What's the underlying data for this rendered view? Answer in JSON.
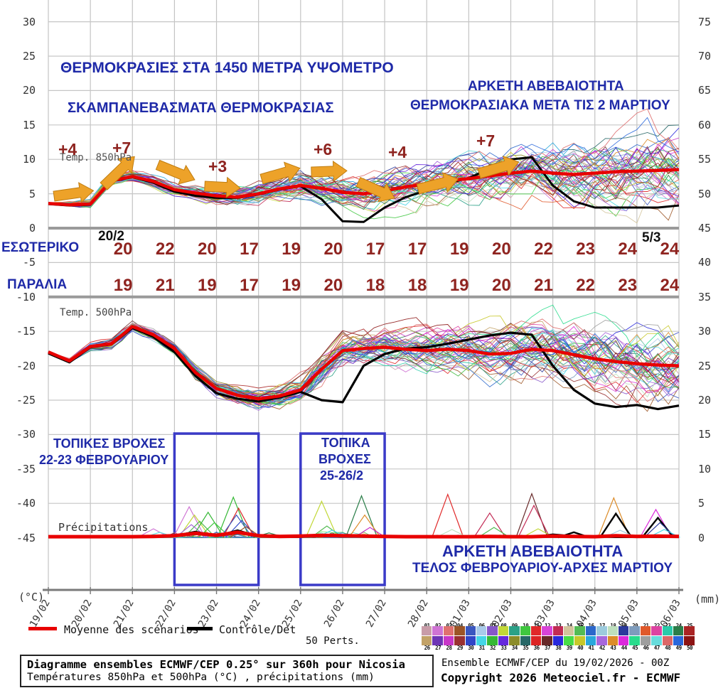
{
  "titles": {
    "main": "ΘΕΡΜΟΚΡΑΣΙΕΣ ΣΤΑ 1450 ΜΕΤΡΑ ΥΨΟΜΕΤΡΟ",
    "sub": "ΣΚΑΜΠΑΝΕΒΑΣΜΑΤΑ ΘΕΡΜΟΚΡΑΣΙΑΣ",
    "unc_top_1": "ΑΡΚΕΤΗ ΑΒΕΒΑΙΟΤΗΤΑ",
    "unc_top_2": "ΘΕΡΜΟΚΡΑΣΙΑΚΑ ΜΕΤΑ ΤΙΣ 2 ΜΑΡΤΙΟΥ",
    "unc_bottom_1": "ΑΡΚΕΤΗ ΑΒΕΒΑΙΟΤΗΤΑ",
    "unc_bottom_2": "ΤΕΛΟΣ ΦΕΒΡΟΥΑΡΙΟΥ-ΑΡΧΕΣ ΜΑΡΤΙΟΥ"
  },
  "panel_labels": {
    "t850": "Temp. 850hPa",
    "t500": "Temp. 500hPa",
    "precip": "Précipitations"
  },
  "axis": {
    "left_unit": "(°C)",
    "right_unit": "(mm)",
    "left_ticks": [
      "30",
      "25",
      "20",
      "15",
      "10",
      "5",
      "0",
      "-5",
      "-10",
      "-15",
      "-20",
      "-25",
      "-30",
      "-35",
      "-40",
      "-45"
    ],
    "right_ticks": [
      "75",
      "70",
      "65",
      "60",
      "55",
      "50",
      "45",
      "40",
      "35",
      "30",
      "25",
      "20",
      "15",
      "10",
      "5",
      "0"
    ],
    "dates": [
      "19/02",
      "20/02",
      "21/02",
      "22/02",
      "23/02",
      "24/02",
      "25/02",
      "26/02",
      "27/02",
      "28/02",
      "01/03",
      "02/03",
      "03/03",
      "04/03",
      "05/03",
      "06/03"
    ]
  },
  "rows": {
    "start_label": "20/2",
    "end_label": "5/3",
    "esoteriko": {
      "label": "ΕΣΩΤΕΡΙΚΟ",
      "values": [
        "20",
        "22",
        "20",
        "17",
        "19",
        "20",
        "17",
        "17",
        "19",
        "20",
        "22",
        "23",
        "24",
        "24"
      ]
    },
    "paralia": {
      "label": "ΠΑΡΑΛΙΑ",
      "values": [
        "19",
        "21",
        "19",
        "17",
        "19",
        "20",
        "18",
        "18",
        "19",
        "20",
        "21",
        "22",
        "23",
        "24"
      ]
    }
  },
  "rain_notes": {
    "box1_line1": "ΤΟΠΙΚΕΣ ΒΡΟΧΕΣ",
    "box1_line2": "22-23 ΦΕΒΡΟΥΑΡΙΟΥ",
    "box2_line1": "ΤΟΠΙΚΑ",
    "box2_line2": "ΒΡΟΧΕΣ",
    "box2_line3": "25-26/2"
  },
  "annotations": {
    "deltas": [
      "+4",
      "+7",
      "+3",
      "+6",
      "+4",
      "+7"
    ]
  },
  "legend": {
    "mean_label": "Moyenne des scénarios",
    "control_label": "Contrôle/Det",
    "perts_label": "50 Perts.",
    "mean_color": "#e80000",
    "control_color": "#000000"
  },
  "perts": {
    "numbers_top": [
      "01",
      "02",
      "03",
      "04",
      "05",
      "06",
      "07",
      "08",
      "09",
      "10",
      "11",
      "12",
      "13",
      "14",
      "15",
      "16",
      "17",
      "18",
      "19",
      "20",
      "21",
      "22",
      "23",
      "24",
      "25"
    ],
    "numbers_bottom": [
      "26",
      "27",
      "28",
      "29",
      "30",
      "31",
      "32",
      "33",
      "34",
      "35",
      "36",
      "37",
      "38",
      "39",
      "40",
      "41",
      "42",
      "43",
      "44",
      "45",
      "46",
      "47",
      "48",
      "49",
      "50"
    ],
    "colors": [
      "#c89ca8",
      "#cf74d4",
      "#e0716f",
      "#9c5526",
      "#3a57c0",
      "#a9cbea",
      "#8757c9",
      "#c2d837",
      "#2ba187",
      "#3fc73f",
      "#e02929",
      "#d843d8",
      "#c22b55",
      "#d3c49c",
      "#54bb54",
      "#2b67cb",
      "#9ccbdd",
      "#bddfbd",
      "#2b3a9c",
      "#7e9cbd",
      "#e0592b",
      "#dd43a1",
      "#29cbaa",
      "#2b7e49",
      "#aa2424",
      "#c2a267",
      "#6d35b5",
      "#c837c8",
      "#993131",
      "#3046c8",
      "#45d6e6",
      "#36b836",
      "#6629dd",
      "#8c8c29",
      "#276767",
      "#dc2424",
      "#672929",
      "#2929dc",
      "#47dc47",
      "#c8c829",
      "#29a7dc",
      "#a767dc",
      "#dc8c29",
      "#dc29dc",
      "#29dc8c",
      "#9e9e9e",
      "#67dcdc",
      "#dc6767",
      "#2967dc",
      "#8c1414"
    ]
  },
  "footer": {
    "box_line1": "Diagramme ensembles ECMWF/CEP 0.25° sur 360h pour Nicosia",
    "box_line2": "Températures 850hPa et 500hPa (°C) , précipitations (mm)",
    "right_line1": "Ensemble ECMWF/CEP du 19/02/2026 - 00Z",
    "right_line2": "Copyright 2026 Meteociel.fr - ECMWF"
  },
  "chart_data": [
    {
      "type": "line",
      "name": "Temp. 850hPa",
      "unit": "°C",
      "x_start": "19/02 00Z",
      "x_end": "06/03 00Z",
      "time_step_hours": 12,
      "ensemble_members": 50,
      "ylim_view": [
        -52,
        31
      ],
      "series": [
        {
          "name": "Moyenne des scénarios",
          "color": "#e80000",
          "values": [
            3.6,
            3.4,
            3.5,
            6.9,
            7.5,
            6.8,
            5.6,
            5.1,
            4.7,
            4.5,
            5.0,
            5.7,
            6.2,
            5.8,
            5.2,
            5.0,
            5.4,
            6.0,
            6.4,
            6.9,
            7.2,
            7.6,
            8.0,
            8.3,
            8.0,
            7.8,
            8.0,
            8.2,
            8.3,
            8.4,
            8.5
          ]
        },
        {
          "name": "Contrôle/Det",
          "color": "#000000",
          "values": [
            3.5,
            3.3,
            3.4,
            6.8,
            7.4,
            6.6,
            5.3,
            4.7,
            4.4,
            4.4,
            4.9,
            5.6,
            6.1,
            4.2,
            1.0,
            0.9,
            3.0,
            4.5,
            5.5,
            6.5,
            7.3,
            8.6,
            10.0,
            10.3,
            6.2,
            3.9,
            3.0,
            3.0,
            3.0,
            3.0,
            3.3
          ]
        }
      ]
    },
    {
      "type": "line",
      "name": "Temp. 500hPa",
      "unit": "°C",
      "x_start": "19/02 00Z",
      "x_end": "06/03 00Z",
      "time_step_hours": 12,
      "ensemble_members": 50,
      "series": [
        {
          "name": "Moyenne des scénarios",
          "color": "#e80000",
          "values": [
            -18.0,
            -19.3,
            -17.2,
            -16.8,
            -14.3,
            -15.5,
            -17.5,
            -21.0,
            -23.3,
            -24.3,
            -24.8,
            -24.4,
            -23.5,
            -20.5,
            -17.8,
            -17.5,
            -17.3,
            -17.6,
            -17.8,
            -17.6,
            -17.8,
            -18.3,
            -18.2,
            -17.6,
            -17.8,
            -18.4,
            -19.0,
            -19.4,
            -19.7,
            -19.9,
            -20.0
          ]
        },
        {
          "name": "Contrôle/Det",
          "color": "#000000",
          "values": [
            -18.2,
            -19.5,
            -17.3,
            -16.9,
            -14.5,
            -15.8,
            -18.0,
            -21.5,
            -24.0,
            -24.8,
            -25.2,
            -24.6,
            -23.8,
            -25.0,
            -25.3,
            -20.0,
            -18.3,
            -17.5,
            -17.3,
            -16.8,
            -16.2,
            -15.6,
            -15.2,
            -15.5,
            -20.0,
            -23.5,
            -25.5,
            -26.0,
            -25.7,
            -26.3,
            -25.8
          ]
        }
      ]
    },
    {
      "type": "line",
      "name": "Précipitations",
      "unit": "mm",
      "x_start": "19/02 00Z",
      "x_end": "06/03 00Z",
      "time_step_hours": 12,
      "series": [
        {
          "name": "Moyenne des scénarios",
          "color": "#e80000",
          "values": [
            0.15,
            0.15,
            0.15,
            0.15,
            0.15,
            0.2,
            0.3,
            0.65,
            0.35,
            0.8,
            0.3,
            0.2,
            0.25,
            0.35,
            0.3,
            0.25,
            0.2,
            0.15,
            0.15,
            0.15,
            0.15,
            0.2,
            0.15,
            0.15,
            0.25,
            0.2,
            0.15,
            0.3,
            0.2,
            0.25,
            0.2
          ]
        },
        {
          "name": "Contrôle/Det",
          "color": "#000000",
          "values": [
            0.08,
            0.08,
            0.08,
            0.08,
            0.08,
            0.15,
            0.3,
            0.9,
            0.25,
            1.1,
            0.2,
            0.08,
            0.1,
            0.25,
            0.15,
            0.2,
            0.1,
            0.08,
            0.08,
            0.1,
            0.08,
            0.15,
            0.1,
            0.08,
            0.5,
            0.25,
            0.15,
            0.08,
            0.08,
            0.08,
            0.08
          ]
        }
      ],
      "member_spikes_6h": [
        {
          "t": 10,
          "h": 1.3,
          "c": 1
        },
        {
          "t": 10.6,
          "h": 0.8,
          "c": 46
        },
        {
          "t": 13.4,
          "h": 4.5,
          "c": 1
        },
        {
          "t": 13.9,
          "h": 3.3,
          "c": 7
        },
        {
          "t": 14.4,
          "h": 2.4,
          "c": 14
        },
        {
          "t": 13.6,
          "h": 1.9,
          "c": 41
        },
        {
          "t": 15.2,
          "h": 3.7,
          "c": 31
        },
        {
          "t": 15.8,
          "h": 2.2,
          "c": 9
        },
        {
          "t": 17.6,
          "h": 5.9,
          "c": 31
        },
        {
          "t": 18.1,
          "h": 4.3,
          "c": 35
        },
        {
          "t": 17.9,
          "h": 3.3,
          "c": 4
        },
        {
          "t": 18.4,
          "h": 2.5,
          "c": 29
        },
        {
          "t": 18.8,
          "h": 1.6,
          "c": 3
        },
        {
          "t": 21,
          "h": 0.7,
          "c": 23
        },
        {
          "t": 26,
          "h": 5.3,
          "c": 7
        },
        {
          "t": 26.5,
          "h": 1.7,
          "c": 14
        },
        {
          "t": 27,
          "h": 1.1,
          "c": 30
        },
        {
          "t": 29.8,
          "h": 6.1,
          "c": 23
        },
        {
          "t": 30.1,
          "h": 3.3,
          "c": 42
        },
        {
          "t": 30.6,
          "h": 1.5,
          "c": 27
        },
        {
          "t": 38,
          "h": 6.3,
          "c": 10
        },
        {
          "t": 38.4,
          "h": 1.2,
          "c": 17
        },
        {
          "t": 42,
          "h": 3.6,
          "c": 12
        },
        {
          "t": 42.4,
          "h": 1.5,
          "c": 14
        },
        {
          "t": 46,
          "h": 6.4,
          "c": 36
        },
        {
          "t": 46.2,
          "h": 4.7,
          "c": 12
        },
        {
          "t": 46.6,
          "h": 1.3,
          "c": 7
        },
        {
          "t": 50,
          "h": 0.8,
          "c": null
        },
        {
          "t": 53.8,
          "h": 5.8,
          "c": 42
        },
        {
          "t": 54,
          "h": 3.5,
          "c": null
        },
        {
          "t": 54.4,
          "h": 1.1,
          "c": 16
        },
        {
          "t": 57.8,
          "h": 4.1,
          "c": 43
        },
        {
          "t": 58,
          "h": 2.9,
          "c": null
        },
        {
          "t": 58.2,
          "h": 2.2,
          "c": 18
        },
        {
          "t": 58.6,
          "h": 1.2,
          "c": 30
        }
      ]
    }
  ]
}
